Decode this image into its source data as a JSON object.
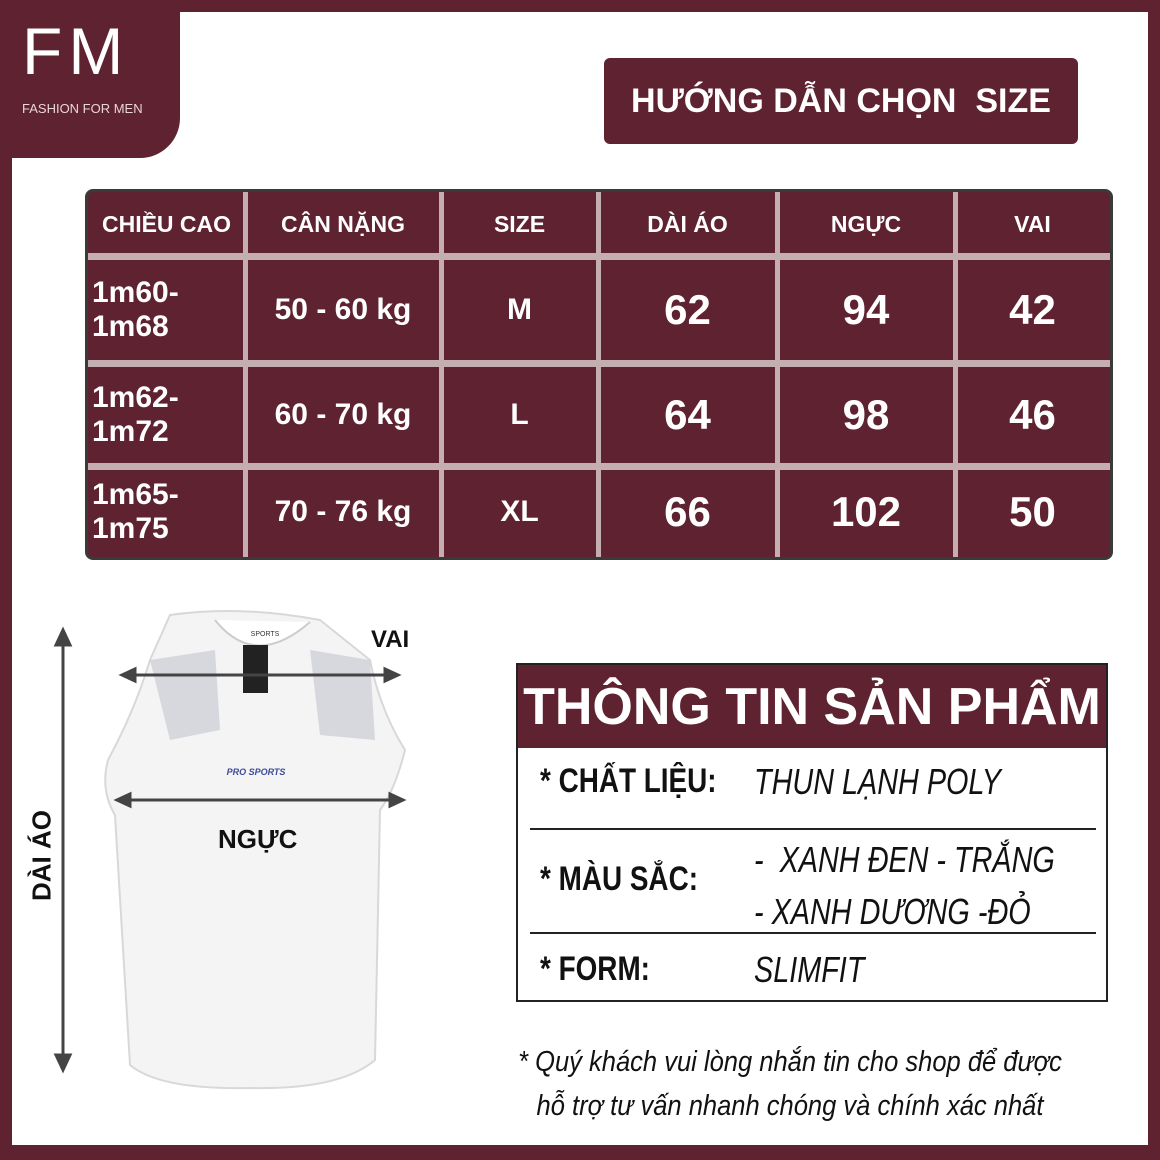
{
  "logo": {
    "mark": "FM",
    "tagline": "FASHION FOR MEN"
  },
  "title": "HƯỚNG DẪN CHỌN  SIZE",
  "size_table": {
    "headers": [
      "CHIỀU CAO",
      "CÂN NẶNG",
      "SIZE",
      "DÀI ÁO",
      "NGỰC",
      "VAI"
    ],
    "rows": [
      [
        "1m60-1m68",
        "50 - 60 kg",
        "M",
        "62",
        "94",
        "42"
      ],
      [
        "1m62- 1m72",
        "60 - 70 kg",
        "L",
        "64",
        "98",
        "46"
      ],
      [
        "1m65- 1m75",
        "70 - 76 kg",
        "XL",
        "66",
        "102",
        "50"
      ]
    ]
  },
  "diagram": {
    "length_label": "DÀI ÁO",
    "shoulder_label": "VAI",
    "chest_label": "NGỰC",
    "shirt_print": "PRO SPORTS",
    "shirt_tag": "SPORTS"
  },
  "info": {
    "title": "THÔNG TIN SẢN PHẨM",
    "rows": [
      {
        "label": "* CHẤT LIỆU:",
        "value": "THUN LẠNH POLY"
      },
      {
        "label": "* MÀU SẮC:",
        "value": "-  XANH ĐEN - TRẮNG",
        "value2": "- XANH DƯƠNG -ĐỎ"
      },
      {
        "label": "* FORM:",
        "value": "SLIMFIT"
      }
    ]
  },
  "note": {
    "line1": "* Quý khách vui lòng nhắn tin cho shop để được",
    "line2": "hỗ trợ tư vấn nhanh chóng và chính xác nhất"
  },
  "colors": {
    "brand": "#5e2231",
    "divider": "#c4aeb2"
  }
}
